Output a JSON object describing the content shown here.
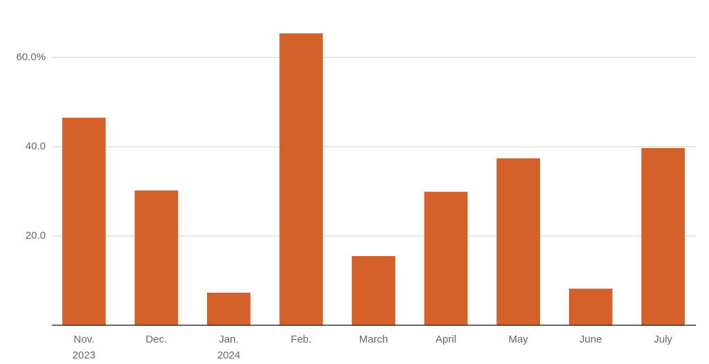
{
  "chart_data": {
    "type": "bar",
    "categories": [
      "Nov.\n2023",
      "Dec.",
      "Jan.\n2024",
      "Feb.",
      "March",
      "April",
      "May",
      "June",
      "July"
    ],
    "values": [
      46.5,
      30.2,
      7.3,
      65.4,
      15.5,
      29.9,
      37.4,
      8.2,
      39.7
    ],
    "color": "#d4602a",
    "ylim": [
      0,
      70
    ],
    "yticks": [
      {
        "value": 20,
        "label": "20.0"
      },
      {
        "value": 40,
        "label": "40.0"
      },
      {
        "value": 60,
        "label": "60.0%"
      }
    ],
    "grid": true
  }
}
